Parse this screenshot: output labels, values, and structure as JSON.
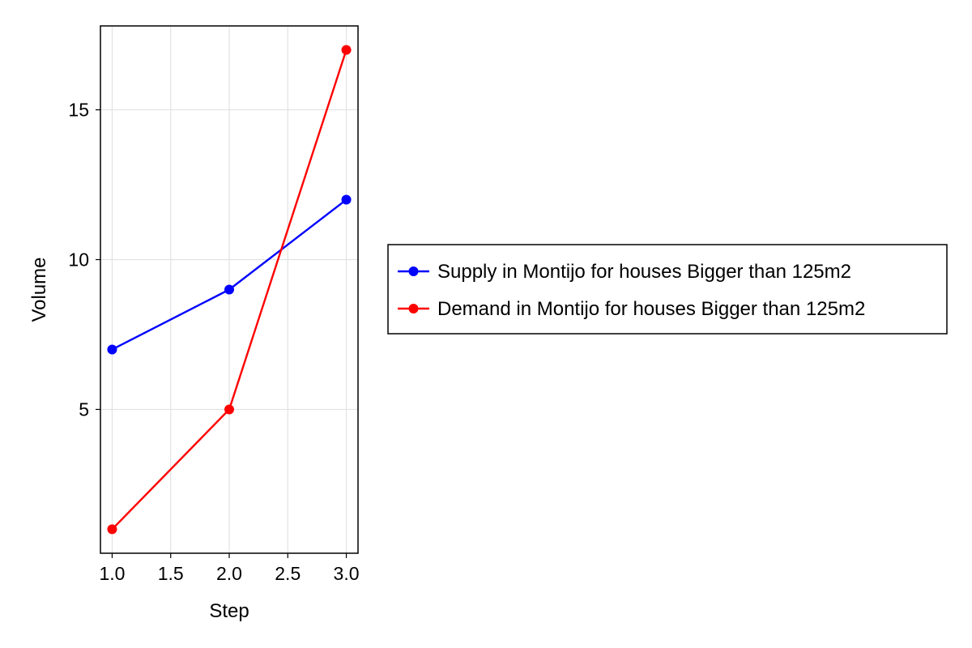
{
  "chart_data": {
    "type": "line",
    "title": "",
    "xlabel": "Step",
    "ylabel": "Volume",
    "xlim": [
      0.9,
      3.1
    ],
    "ylim": [
      0.2,
      17.8
    ],
    "xticks": [
      1.0,
      1.5,
      2.0,
      2.5,
      3.0
    ],
    "xtick_labels": [
      "1.0",
      "1.5",
      "2.0",
      "2.5",
      "3.0"
    ],
    "yticks": [
      5,
      10,
      15
    ],
    "ytick_labels": [
      "5",
      "10",
      "15"
    ],
    "grid": true,
    "legend_position": "right",
    "series": [
      {
        "name": "Supply in Montijo for houses Bigger than 125m2",
        "color": "#0000ff",
        "marker": "circle",
        "x": [
          1,
          2,
          3
        ],
        "y": [
          7,
          9,
          12
        ]
      },
      {
        "name": "Demand in Montijo for houses Bigger than 125m2",
        "color": "#ff0000",
        "marker": "circle",
        "x": [
          1,
          2,
          3
        ],
        "y": [
          1,
          5,
          17
        ]
      }
    ]
  }
}
